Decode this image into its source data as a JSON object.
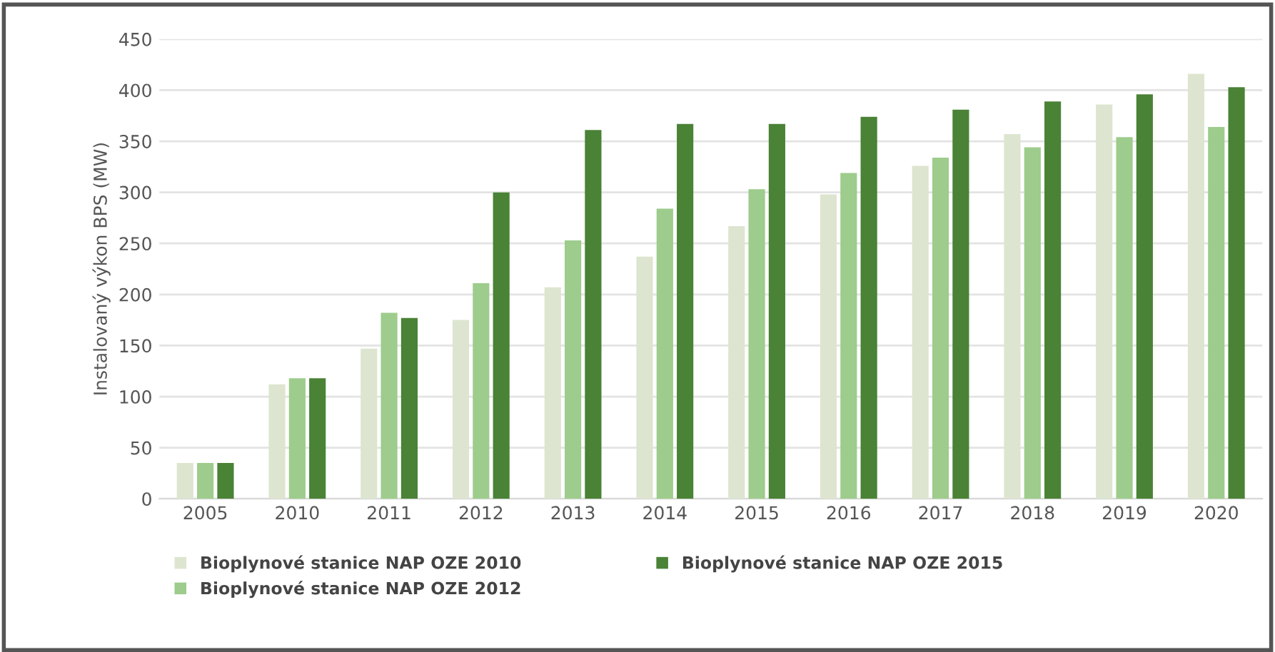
{
  "chart_data": {
    "type": "bar",
    "ylabel": "Instalovaný výkon BPS (MW)",
    "categories": [
      "2005",
      "2010",
      "2011",
      "2012",
      "2013",
      "2014",
      "2015",
      "2016",
      "2017",
      "2018",
      "2019",
      "2020"
    ],
    "series": [
      {
        "name": "Bioplynové stanice NAP OZE 2010",
        "color": "#dde5d0",
        "values": [
          35,
          112,
          147,
          175,
          207,
          237,
          267,
          298,
          326,
          357,
          386,
          416
        ]
      },
      {
        "name": "Bioplynové stanice NAP OZE 2012",
        "color": "#9dcc8c",
        "values": [
          35,
          118,
          182,
          211,
          253,
          284,
          303,
          319,
          334,
          344,
          354,
          364
        ]
      },
      {
        "name": "Bioplynové stanice NAP OZE 2015",
        "color": "#4a8236",
        "values": [
          35,
          118,
          177,
          300,
          361,
          367,
          367,
          374,
          381,
          389,
          396,
          403
        ]
      }
    ],
    "ylim": [
      0,
      450
    ],
    "yticks": [
      0,
      50,
      100,
      150,
      200,
      250,
      300,
      350,
      400,
      450
    ],
    "grid": "y",
    "legend": "bottom"
  }
}
